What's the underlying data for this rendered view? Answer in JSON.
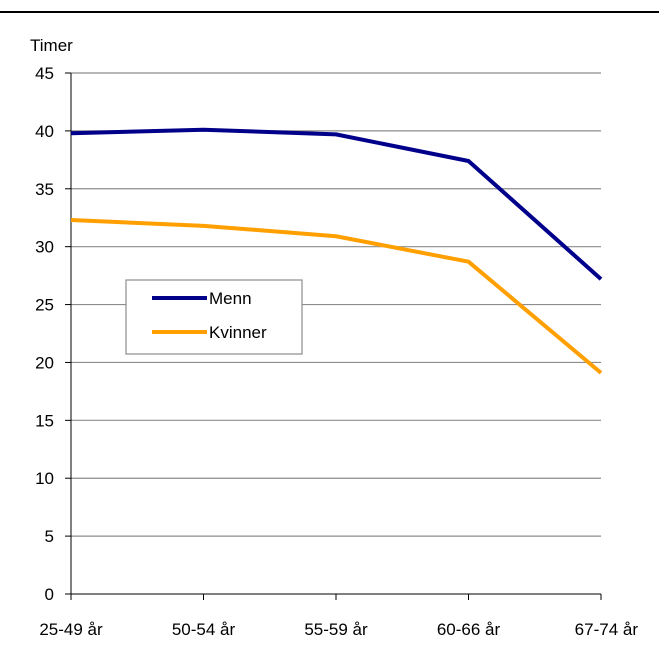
{
  "chart_data": {
    "type": "line",
    "ylabel": "Timer",
    "categories": [
      "25-49 år",
      "50-54 år",
      "55-59 år",
      "60-66 år",
      "67-74 år"
    ],
    "series": [
      {
        "name": "Menn",
        "values": [
          39.8,
          40.1,
          39.7,
          37.4,
          27.2
        ],
        "color": "#00008B"
      },
      {
        "name": "Kvinner",
        "values": [
          32.3,
          31.8,
          30.9,
          28.7,
          19.1
        ],
        "color": "#FF9F00"
      }
    ],
    "ylim": [
      0,
      45
    ],
    "yticks": [
      0,
      5,
      10,
      15,
      20,
      25,
      30,
      35,
      40,
      45
    ],
    "grid": true,
    "legend_position": "center-left"
  }
}
